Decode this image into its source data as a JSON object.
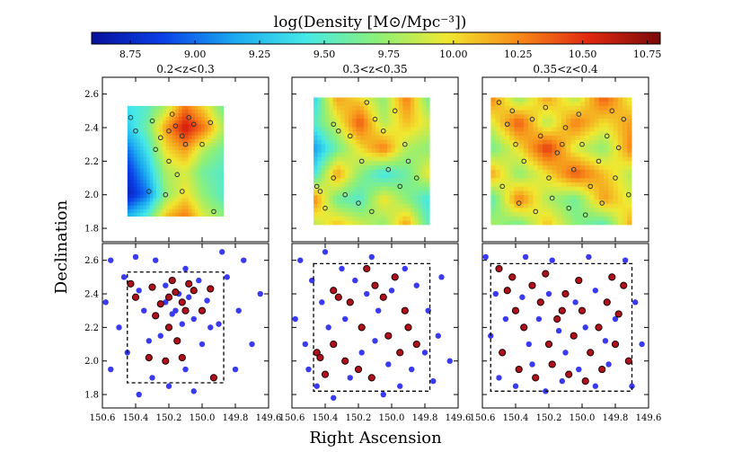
{
  "chart_data": {
    "type": "scatter",
    "colorbar": {
      "title": "log(Density [M⊙/Mpc⁻³])",
      "min": 8.6,
      "max": 10.8,
      "tick_values": [
        8.75,
        9.0,
        9.25,
        9.5,
        9.75,
        10.0,
        10.25,
        10.5,
        10.75
      ],
      "tick_labels": [
        "8.75",
        "9.00",
        "9.25",
        "9.50",
        "9.75",
        "10.00",
        "10.25",
        "10.50",
        "10.75"
      ],
      "colors": [
        "#08109a",
        "#0a40e8",
        "#1aa8f0",
        "#45e8e8",
        "#8af07a",
        "#f0e830",
        "#f88a18",
        "#e02810",
        "#7a0a0a"
      ]
    },
    "xlabel": "Right Ascension",
    "ylabel": "Declination",
    "x_range": [
      150.6,
      149.6
    ],
    "y_range": [
      1.72,
      2.7
    ],
    "x_tick_values": [
      150.6,
      150.4,
      150.2,
      150.0,
      149.8,
      149.6
    ],
    "x_tick_labels": [
      "150.6",
      "150.4",
      "150.2",
      "150.0",
      "149.8",
      "149.6"
    ],
    "y_tick_values": [
      1.8,
      2.0,
      2.2,
      2.4,
      2.6
    ],
    "y_tick_labels": [
      "1.8",
      "2.0",
      "2.2",
      "2.4",
      "2.6"
    ],
    "panels": [
      {
        "title": "0.2<z<0.3",
        "map_box": {
          "ra": [
            150.45,
            149.87
          ],
          "dec": [
            1.87,
            2.53
          ]
        },
        "map_field": [
          [
            9.4,
            9.5,
            9.8,
            10.3,
            10.0,
            9.6
          ],
          [
            9.3,
            9.6,
            10.2,
            10.6,
            10.3,
            9.8
          ],
          [
            9.0,
            9.4,
            10.0,
            10.2,
            9.8,
            9.6
          ],
          [
            8.8,
            9.2,
            9.8,
            9.9,
            9.6,
            9.5
          ],
          [
            8.7,
            9.0,
            9.7,
            10.0,
            9.7,
            9.5
          ],
          [
            9.2,
            9.5,
            10.1,
            10.3,
            9.9,
            9.7
          ]
        ],
        "rich_points": [
          [
            150.43,
            2.46
          ],
          [
            150.3,
            2.44
          ],
          [
            150.2,
            2.38
          ],
          [
            150.16,
            2.41
          ],
          [
            150.12,
            2.35
          ],
          [
            150.08,
            2.46
          ],
          [
            150.05,
            2.42
          ],
          [
            150.1,
            2.3
          ],
          [
            150.25,
            2.34
          ],
          [
            150.18,
            2.48
          ],
          [
            150.2,
            2.2
          ],
          [
            150.15,
            2.12
          ],
          [
            150.22,
            2.0
          ],
          [
            150.12,
            2.02
          ],
          [
            150.32,
            2.02
          ],
          [
            149.95,
            2.43
          ],
          [
            150.0,
            2.3
          ],
          [
            150.28,
            2.27
          ],
          [
            149.93,
            1.9
          ],
          [
            150.4,
            2.38
          ]
        ],
        "poor_points": [
          [
            150.55,
            2.6
          ],
          [
            150.47,
            2.5
          ],
          [
            150.38,
            2.42
          ],
          [
            150.35,
            2.3
          ],
          [
            150.28,
            2.6
          ],
          [
            150.22,
            2.45
          ],
          [
            150.14,
            2.4
          ],
          [
            150.1,
            2.55
          ],
          [
            150.02,
            2.48
          ],
          [
            149.97,
            2.36
          ],
          [
            149.9,
            2.22
          ],
          [
            149.85,
            2.5
          ],
          [
            149.75,
            2.6
          ],
          [
            149.7,
            2.1
          ],
          [
            149.65,
            2.4
          ],
          [
            150.5,
            2.2
          ],
          [
            150.45,
            2.05
          ],
          [
            150.55,
            1.95
          ],
          [
            150.3,
            1.9
          ],
          [
            150.2,
            1.85
          ],
          [
            150.1,
            1.95
          ],
          [
            150.0,
            2.1
          ],
          [
            149.95,
            2.2
          ],
          [
            150.38,
            1.8
          ],
          [
            150.25,
            2.15
          ],
          [
            150.18,
            2.28
          ],
          [
            150.05,
            2.25
          ],
          [
            150.12,
            2.22
          ],
          [
            150.22,
            2.35
          ],
          [
            150.16,
            2.3
          ],
          [
            150.08,
            2.38
          ],
          [
            149.8,
            1.95
          ],
          [
            150.58,
            2.35
          ],
          [
            150.4,
            2.62
          ],
          [
            150.05,
            1.82
          ],
          [
            149.88,
            2.65
          ],
          [
            150.32,
            2.12
          ],
          [
            149.78,
            2.3
          ]
        ]
      },
      {
        "title": "0.3<z<0.35",
        "map_box": {
          "ra": [
            150.47,
            149.77
          ],
          "dec": [
            1.82,
            2.58
          ]
        },
        "map_field": [
          [
            9.3,
            10.2,
            10.0,
            9.7,
            10.3,
            9.6
          ],
          [
            9.5,
            9.9,
            10.4,
            9.8,
            10.1,
            9.9
          ],
          [
            9.1,
            9.6,
            10.0,
            10.3,
            9.8,
            9.7
          ],
          [
            9.4,
            10.2,
            9.7,
            9.4,
            9.6,
            10.0
          ],
          [
            10.3,
            9.6,
            9.5,
            10.0,
            9.7,
            9.4
          ],
          [
            9.8,
            10.1,
            9.9,
            9.7,
            10.2,
            9.5
          ]
        ],
        "rich_points": [
          [
            150.45,
            2.05
          ],
          [
            150.43,
            2.02
          ],
          [
            150.35,
            2.42
          ],
          [
            150.32,
            2.38
          ],
          [
            150.25,
            2.35
          ],
          [
            150.18,
            2.2
          ],
          [
            150.1,
            2.45
          ],
          [
            150.05,
            2.38
          ],
          [
            149.98,
            2.5
          ],
          [
            149.92,
            2.3
          ],
          [
            149.9,
            2.2
          ],
          [
            149.85,
            2.1
          ],
          [
            150.28,
            2.0
          ],
          [
            150.2,
            1.95
          ],
          [
            150.12,
            1.9
          ],
          [
            150.4,
            1.92
          ],
          [
            150.35,
            2.1
          ],
          [
            149.95,
            2.05
          ],
          [
            150.02,
            2.15
          ],
          [
            150.15,
            2.55
          ]
        ],
        "poor_points": [
          [
            150.55,
            2.6
          ],
          [
            150.48,
            2.48
          ],
          [
            150.42,
            2.35
          ],
          [
            150.38,
            2.2
          ],
          [
            150.3,
            2.55
          ],
          [
            150.22,
            2.48
          ],
          [
            150.15,
            2.4
          ],
          [
            150.08,
            2.3
          ],
          [
            150.0,
            2.42
          ],
          [
            149.92,
            2.55
          ],
          [
            149.85,
            2.45
          ],
          [
            149.78,
            2.3
          ],
          [
            149.72,
            2.15
          ],
          [
            149.65,
            2.0
          ],
          [
            150.5,
            1.95
          ],
          [
            150.45,
            1.85
          ],
          [
            150.35,
            1.78
          ],
          [
            150.25,
            1.9
          ],
          [
            150.18,
            2.05
          ],
          [
            150.1,
            2.12
          ],
          [
            150.02,
            1.98
          ],
          [
            149.95,
            1.85
          ],
          [
            149.88,
            1.95
          ],
          [
            149.8,
            2.05
          ],
          [
            150.58,
            2.25
          ],
          [
            150.4,
            2.65
          ],
          [
            150.12,
            2.62
          ],
          [
            149.7,
            2.5
          ],
          [
            150.28,
            2.25
          ],
          [
            150.05,
            1.8
          ],
          [
            149.75,
            1.88
          ],
          [
            150.52,
            2.1
          ]
        ]
      },
      {
        "title": "0.35<z<0.4",
        "map_box": {
          "ra": [
            150.55,
            149.7
          ],
          "dec": [
            1.82,
            2.58
          ]
        },
        "map_field": [
          [
            10.3,
            9.7,
            10.2,
            9.8,
            10.4,
            9.9
          ],
          [
            9.9,
            10.4,
            9.8,
            10.3,
            10.0,
            10.2
          ],
          [
            9.6,
            10.0,
            10.5,
            9.9,
            9.7,
            10.3
          ],
          [
            10.2,
            9.7,
            10.0,
            10.4,
            10.1,
            9.8
          ],
          [
            9.5,
            10.3,
            9.8,
            9.6,
            10.2,
            9.9
          ],
          [
            9.8,
            9.6,
            10.1,
            9.7,
            9.5,
            10.2
          ]
        ],
        "rich_points": [
          [
            150.5,
            2.55
          ],
          [
            150.45,
            2.42
          ],
          [
            150.4,
            2.3
          ],
          [
            150.35,
            2.2
          ],
          [
            150.3,
            2.45
          ],
          [
            150.25,
            2.35
          ],
          [
            150.2,
            2.1
          ],
          [
            150.15,
            2.25
          ],
          [
            150.1,
            2.4
          ],
          [
            150.05,
            2.15
          ],
          [
            150.0,
            2.3
          ],
          [
            149.95,
            2.05
          ],
          [
            149.9,
            2.2
          ],
          [
            149.85,
            2.35
          ],
          [
            149.8,
            2.1
          ],
          [
            149.75,
            2.45
          ],
          [
            149.72,
            2.0
          ],
          [
            150.48,
            2.05
          ],
          [
            150.38,
            1.95
          ],
          [
            150.28,
            1.9
          ],
          [
            150.18,
            1.98
          ],
          [
            150.08,
            1.92
          ],
          [
            149.98,
            1.88
          ],
          [
            149.88,
            1.95
          ],
          [
            149.78,
            2.28
          ],
          [
            150.42,
            2.5
          ],
          [
            150.22,
            2.52
          ],
          [
            150.02,
            2.48
          ],
          [
            149.82,
            2.5
          ],
          [
            150.12,
            2.3
          ]
        ],
        "poor_points": [
          [
            150.58,
            2.62
          ],
          [
            150.52,
            2.4
          ],
          [
            150.46,
            2.25
          ],
          [
            150.36,
            2.38
          ],
          [
            150.32,
            2.1
          ],
          [
            150.26,
            2.25
          ],
          [
            150.2,
            2.4
          ],
          [
            150.14,
            2.18
          ],
          [
            150.1,
            2.05
          ],
          [
            150.04,
            2.35
          ],
          [
            149.98,
            2.2
          ],
          [
            149.92,
            2.42
          ],
          [
            149.86,
            2.12
          ],
          [
            149.8,
            2.25
          ],
          [
            149.74,
            2.6
          ],
          [
            149.68,
            2.35
          ],
          [
            149.64,
            2.1
          ],
          [
            150.5,
            1.9
          ],
          [
            150.4,
            1.85
          ],
          [
            150.3,
            1.98
          ],
          [
            150.22,
            1.82
          ],
          [
            150.12,
            1.88
          ],
          [
            150.02,
            1.95
          ],
          [
            149.92,
            1.85
          ],
          [
            149.84,
            1.98
          ],
          [
            150.55,
            2.15
          ],
          [
            150.18,
            2.6
          ],
          [
            149.96,
            2.62
          ],
          [
            149.7,
            1.85
          ],
          [
            150.34,
            2.62
          ]
        ]
      }
    ]
  }
}
